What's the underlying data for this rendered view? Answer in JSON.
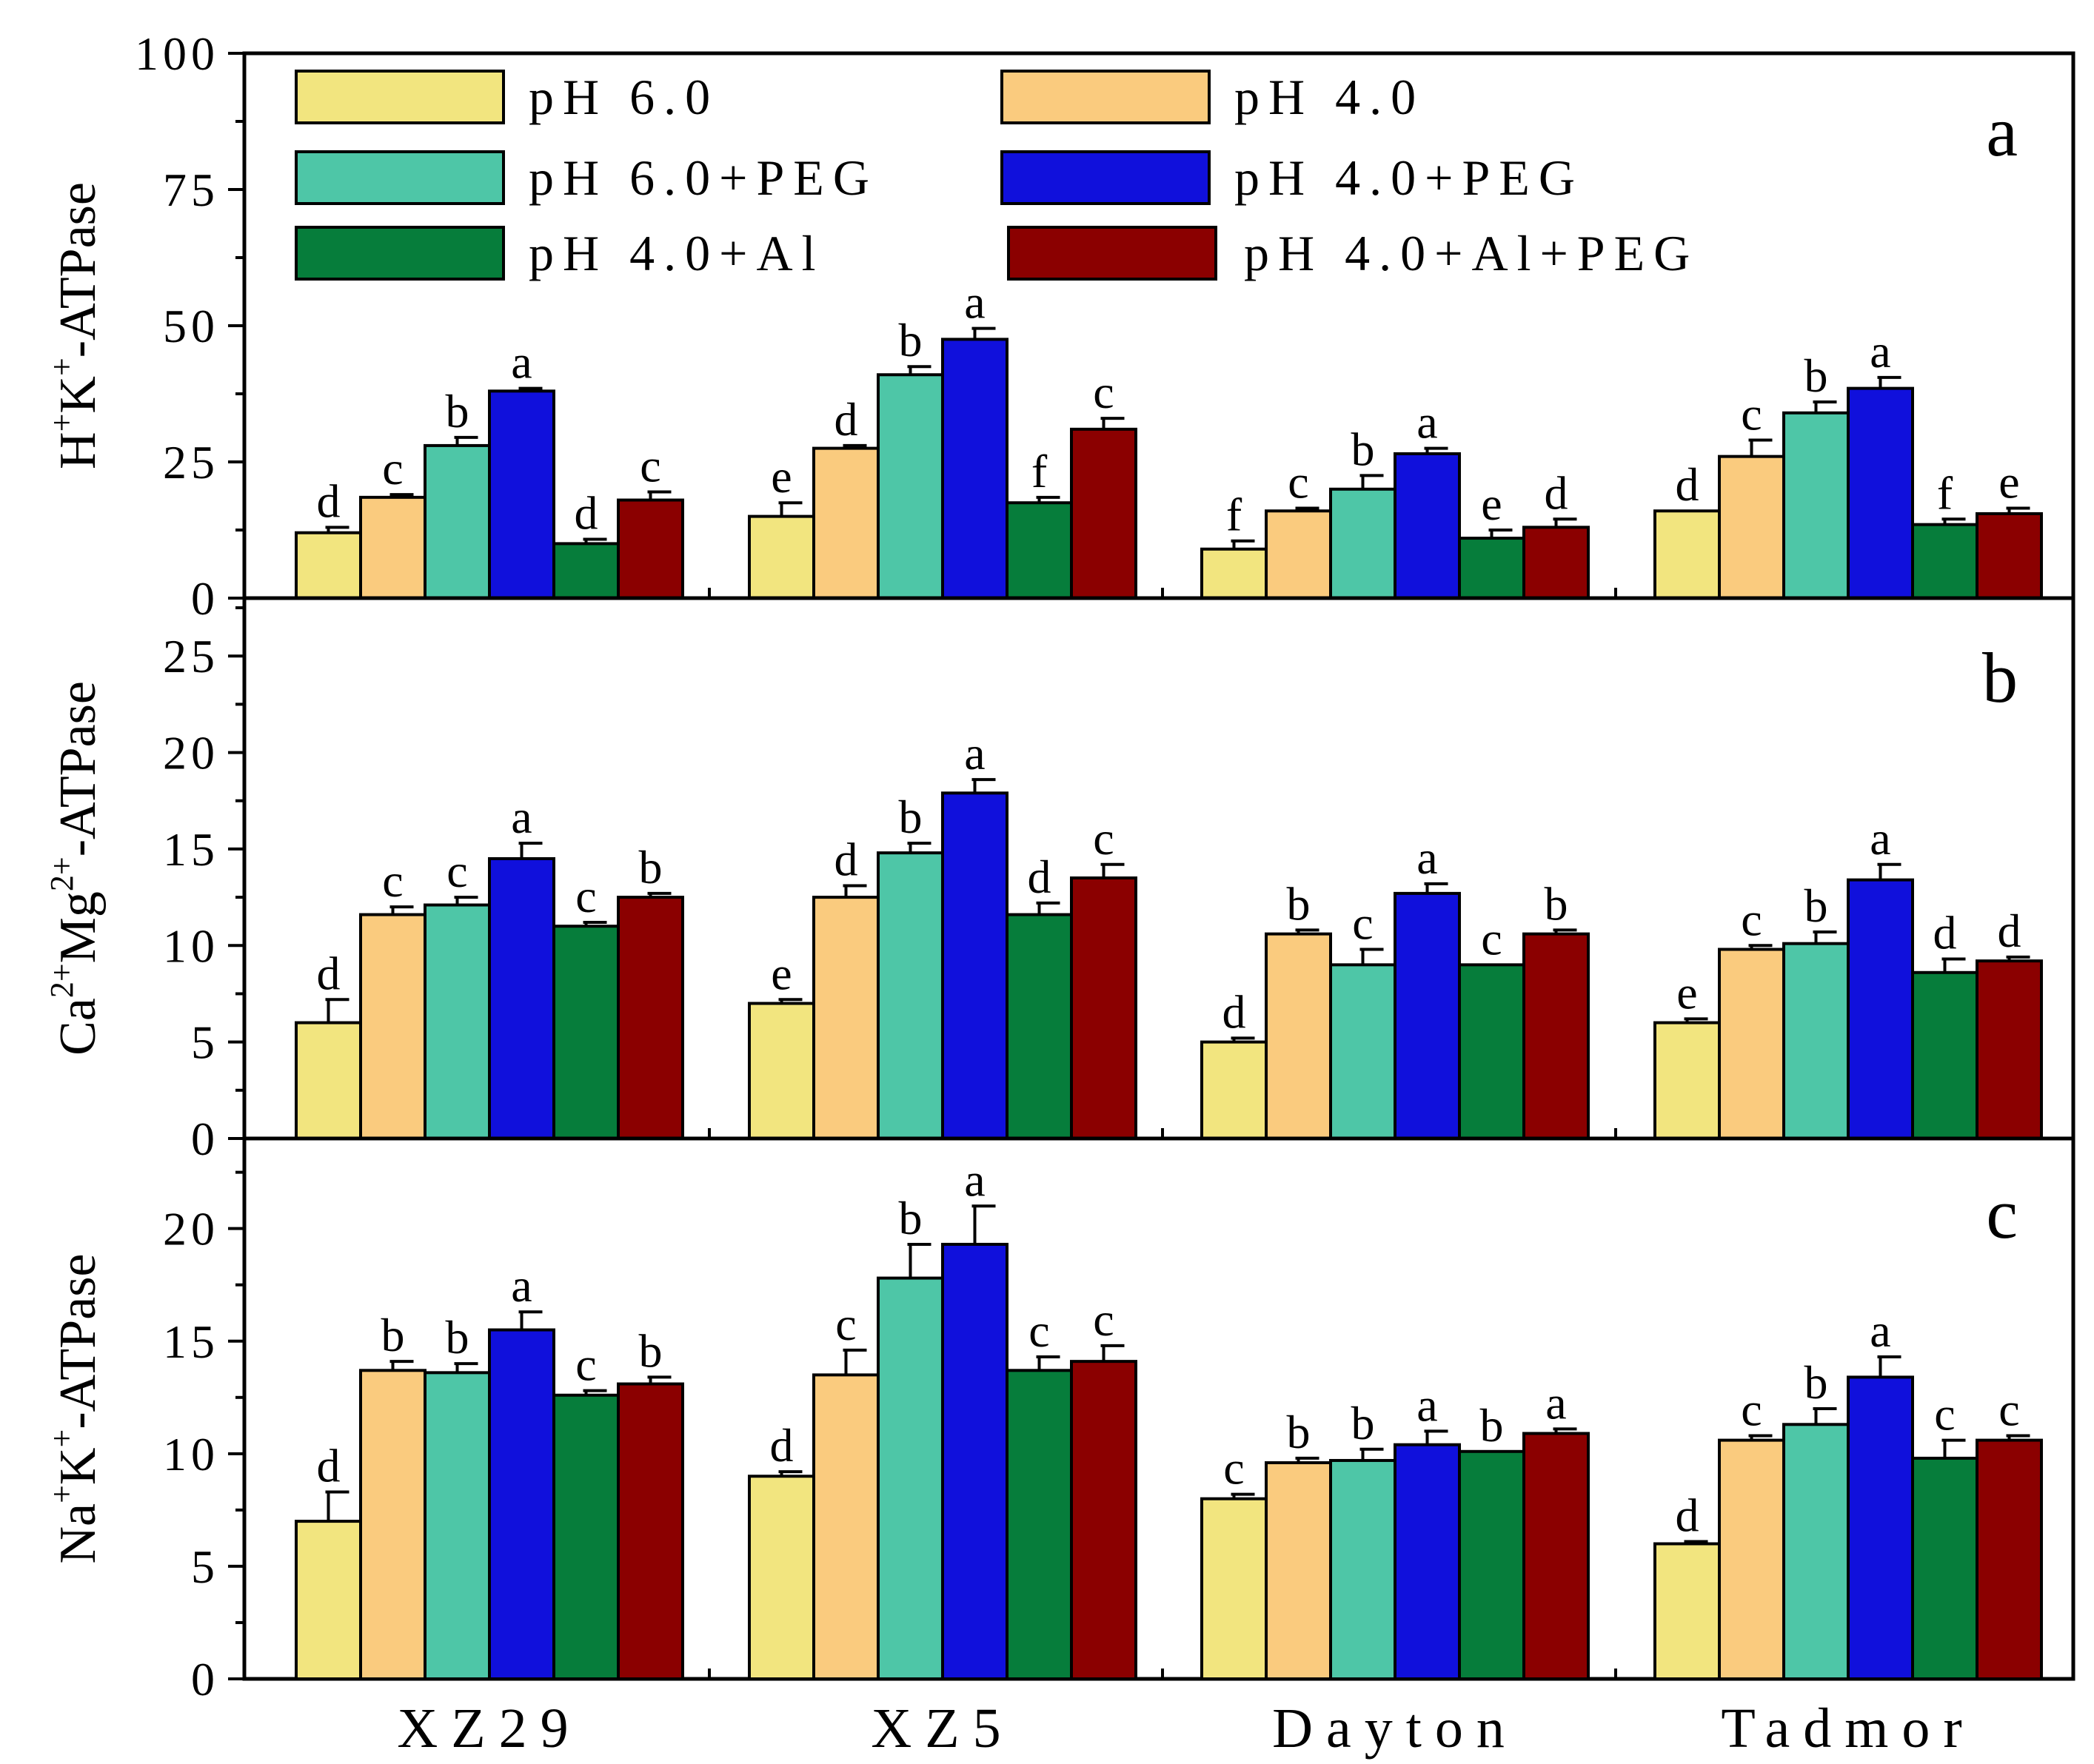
{
  "chart_data": {
    "type": "bar",
    "categories": [
      "XZ29",
      "XZ5",
      "Dayton",
      "Tadmor"
    ],
    "legend": [
      {
        "name": "pH 6.0",
        "color": "#F2E57F"
      },
      {
        "name": "pH 4.0",
        "color": "#FACB7E"
      },
      {
        "name": "pH 6.0+PEG",
        "color": "#4EC6A7"
      },
      {
        "name": "pH 4.0+PEG",
        "color": "#1010DC"
      },
      {
        "name": "pH 4.0+Al",
        "color": "#067D3B"
      },
      {
        "name": "pH 4.0+Al+PEG",
        "color": "#8B0000"
      }
    ],
    "panels": [
      {
        "letter": "a",
        "ylabel_parts": [
          "H",
          "+",
          "K",
          "+",
          "-ATPase"
        ],
        "ylim": [
          0,
          100
        ],
        "ticks": [
          "0",
          "25",
          "50",
          "75",
          "100"
        ],
        "series": [
          {
            "name": "pH 6.0",
            "values": [
              12,
              15,
              9,
              16
            ],
            "errors": [
              1,
              2.5,
              1.5,
              0
            ],
            "letters": [
              "d",
              "e",
              "f",
              "d"
            ]
          },
          {
            "name": "pH 4.0",
            "values": [
              18.5,
              27.5,
              16,
              26
            ],
            "errors": [
              0.5,
              0.5,
              0.5,
              3
            ],
            "letters": [
              "c",
              "d",
              "c",
              "c"
            ]
          },
          {
            "name": "pH 6.0+PEG",
            "values": [
              28,
              41,
              20,
              34
            ],
            "errors": [
              1.5,
              1.5,
              2.5,
              2
            ],
            "letters": [
              "b",
              "b",
              "b",
              "b"
            ]
          },
          {
            "name": "pH 4.0+PEG",
            "values": [
              38,
              47.5,
              26.5,
              38.5
            ],
            "errors": [
              0.5,
              2,
              1,
              2
            ],
            "letters": [
              "a",
              "a",
              "a",
              "a"
            ]
          },
          {
            "name": "pH 4.0+Al",
            "values": [
              10,
              17.5,
              11,
              13.5
            ],
            "errors": [
              0.8,
              1,
              1.5,
              1
            ],
            "letters": [
              "d",
              "f",
              "e",
              "f"
            ]
          },
          {
            "name": "pH 4.0+Al+PEG",
            "values": [
              18,
              31,
              13,
              15.5
            ],
            "errors": [
              1.5,
              2,
              1.5,
              1
            ],
            "letters": [
              "c",
              "c",
              "d",
              "e"
            ]
          }
        ]
      },
      {
        "letter": "b",
        "ylabel_parts": [
          "Ca",
          "2+",
          "Mg",
          "2+",
          "-ATPase"
        ],
        "ylim": [
          0,
          28
        ],
        "ticks": [
          "0",
          "5",
          "10",
          "15",
          "20",
          "25"
        ],
        "series": [
          {
            "name": "pH 6.0",
            "values": [
              6,
              7,
              5,
              6
            ],
            "errors": [
              1.2,
              0.2,
              0.2,
              0.2
            ],
            "letters": [
              "d",
              "e",
              "d",
              "e"
            ]
          },
          {
            "name": "pH 4.0",
            "values": [
              11.6,
              12.5,
              10.6,
              9.8
            ],
            "errors": [
              0.4,
              0.6,
              0.2,
              0.2
            ],
            "letters": [
              "c",
              "d",
              "b",
              "c"
            ]
          },
          {
            "name": "pH 6.0+PEG",
            "values": [
              12.1,
              14.8,
              9,
              10.1
            ],
            "errors": [
              0.4,
              0.5,
              0.8,
              0.6
            ],
            "letters": [
              "c",
              "b",
              "c",
              "b"
            ]
          },
          {
            "name": "pH 4.0+PEG",
            "values": [
              14.5,
              17.9,
              12.7,
              13.4
            ],
            "errors": [
              0.8,
              0.7,
              0.5,
              0.8
            ],
            "letters": [
              "a",
              "a",
              "a",
              "a"
            ]
          },
          {
            "name": "pH 4.0+Al",
            "values": [
              11,
              11.6,
              9,
              8.6
            ],
            "errors": [
              0.2,
              0.6,
              0,
              0.7
            ],
            "letters": [
              "c",
              "d",
              "c",
              "d"
            ]
          },
          {
            "name": "pH 4.0+Al+PEG",
            "values": [
              12.5,
              13.5,
              10.6,
              9.2
            ],
            "errors": [
              0.2,
              0.7,
              0.2,
              0.2
            ],
            "letters": [
              "b",
              "c",
              "b",
              "d"
            ]
          }
        ]
      },
      {
        "letter": "c",
        "ylabel_parts": [
          "Na",
          "+",
          "K",
          "+",
          "-ATPase"
        ],
        "ylim": [
          0,
          24
        ],
        "ticks": [
          "0",
          "5",
          "10",
          "15",
          "20"
        ],
        "series": [
          {
            "name": "pH 6.0",
            "values": [
              7,
              9,
              8,
              6
            ],
            "errors": [
              1.3,
              0.2,
              0.2,
              0.1
            ],
            "letters": [
              "d",
              "d",
              "c",
              "d"
            ]
          },
          {
            "name": "pH 4.0",
            "values": [
              13.7,
              13.5,
              9.6,
              10.6
            ],
            "errors": [
              0.4,
              1.1,
              0.2,
              0.2
            ],
            "letters": [
              "b",
              "c",
              "b",
              "c"
            ]
          },
          {
            "name": "pH 6.0+PEG",
            "values": [
              13.6,
              17.8,
              9.7,
              11.3
            ],
            "errors": [
              0.4,
              1.5,
              0.5,
              0.7
            ],
            "letters": [
              "b",
              "b",
              "b",
              "b"
            ]
          },
          {
            "name": "pH 4.0+PEG",
            "values": [
              15.5,
              19.3,
              10.4,
              13.4
            ],
            "errors": [
              0.8,
              1.7,
              0.6,
              0.9
            ],
            "letters": [
              "a",
              "a",
              "a",
              "a"
            ]
          },
          {
            "name": "pH 4.0+Al",
            "values": [
              12.6,
              13.7,
              10.1,
              9.8
            ],
            "errors": [
              0.2,
              0.6,
              0,
              0.8
            ],
            "letters": [
              "c",
              "c",
              "b",
              "c"
            ]
          },
          {
            "name": "pH 4.0+Al+PEG",
            "values": [
              13.1,
              14.1,
              10.9,
              10.6
            ],
            "errors": [
              0.3,
              0.7,
              0.2,
              0.2
            ],
            "letters": [
              "b",
              "c",
              "a",
              "c"
            ]
          }
        ]
      }
    ]
  }
}
